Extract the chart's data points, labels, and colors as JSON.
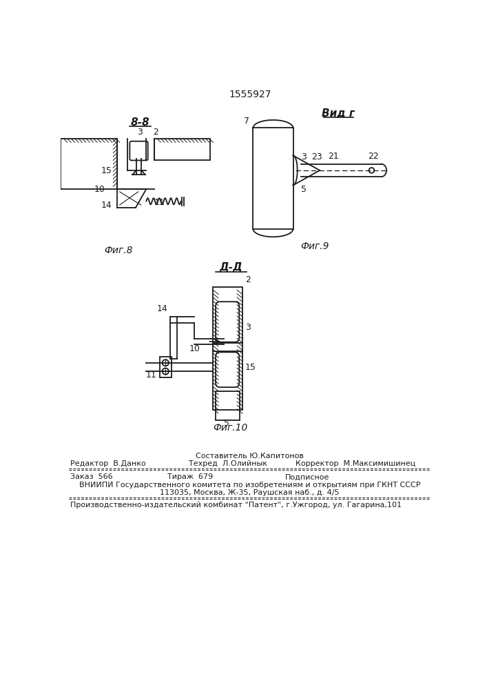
{
  "patent_number": "1555927",
  "fig8_label": "Фиг.8",
  "fig9_label": "Фиг.9",
  "fig10_label": "Фиг.10",
  "section_b": "8-8",
  "section_d": "Д-Д",
  "view_g": "Вид г",
  "footer_line0": "Составитель Ю.Капитонов",
  "footer_line1_left": "Редактор  В.Данко",
  "footer_line1_center": "Техред  Л.Олийнык",
  "footer_line1_right": "Корректор  М.Максимишинец",
  "footer_line2a": "Заказ  566",
  "footer_line2b": "Тираж  679",
  "footer_line2c": "Подписное",
  "footer_line3": "ВНИИПИ Государственного комитета по изобретениям и открытиям при ГКНТ СССР",
  "footer_line4": "113035, Москва, Ж-35, Раушская наб., д. 4/5",
  "footer_line5": "Производственно-издательский комбинат \"Патент\", г.Ужгород, ул. Гагарина,101",
  "bg_color": "#ffffff",
  "line_color": "#1a1a1a"
}
